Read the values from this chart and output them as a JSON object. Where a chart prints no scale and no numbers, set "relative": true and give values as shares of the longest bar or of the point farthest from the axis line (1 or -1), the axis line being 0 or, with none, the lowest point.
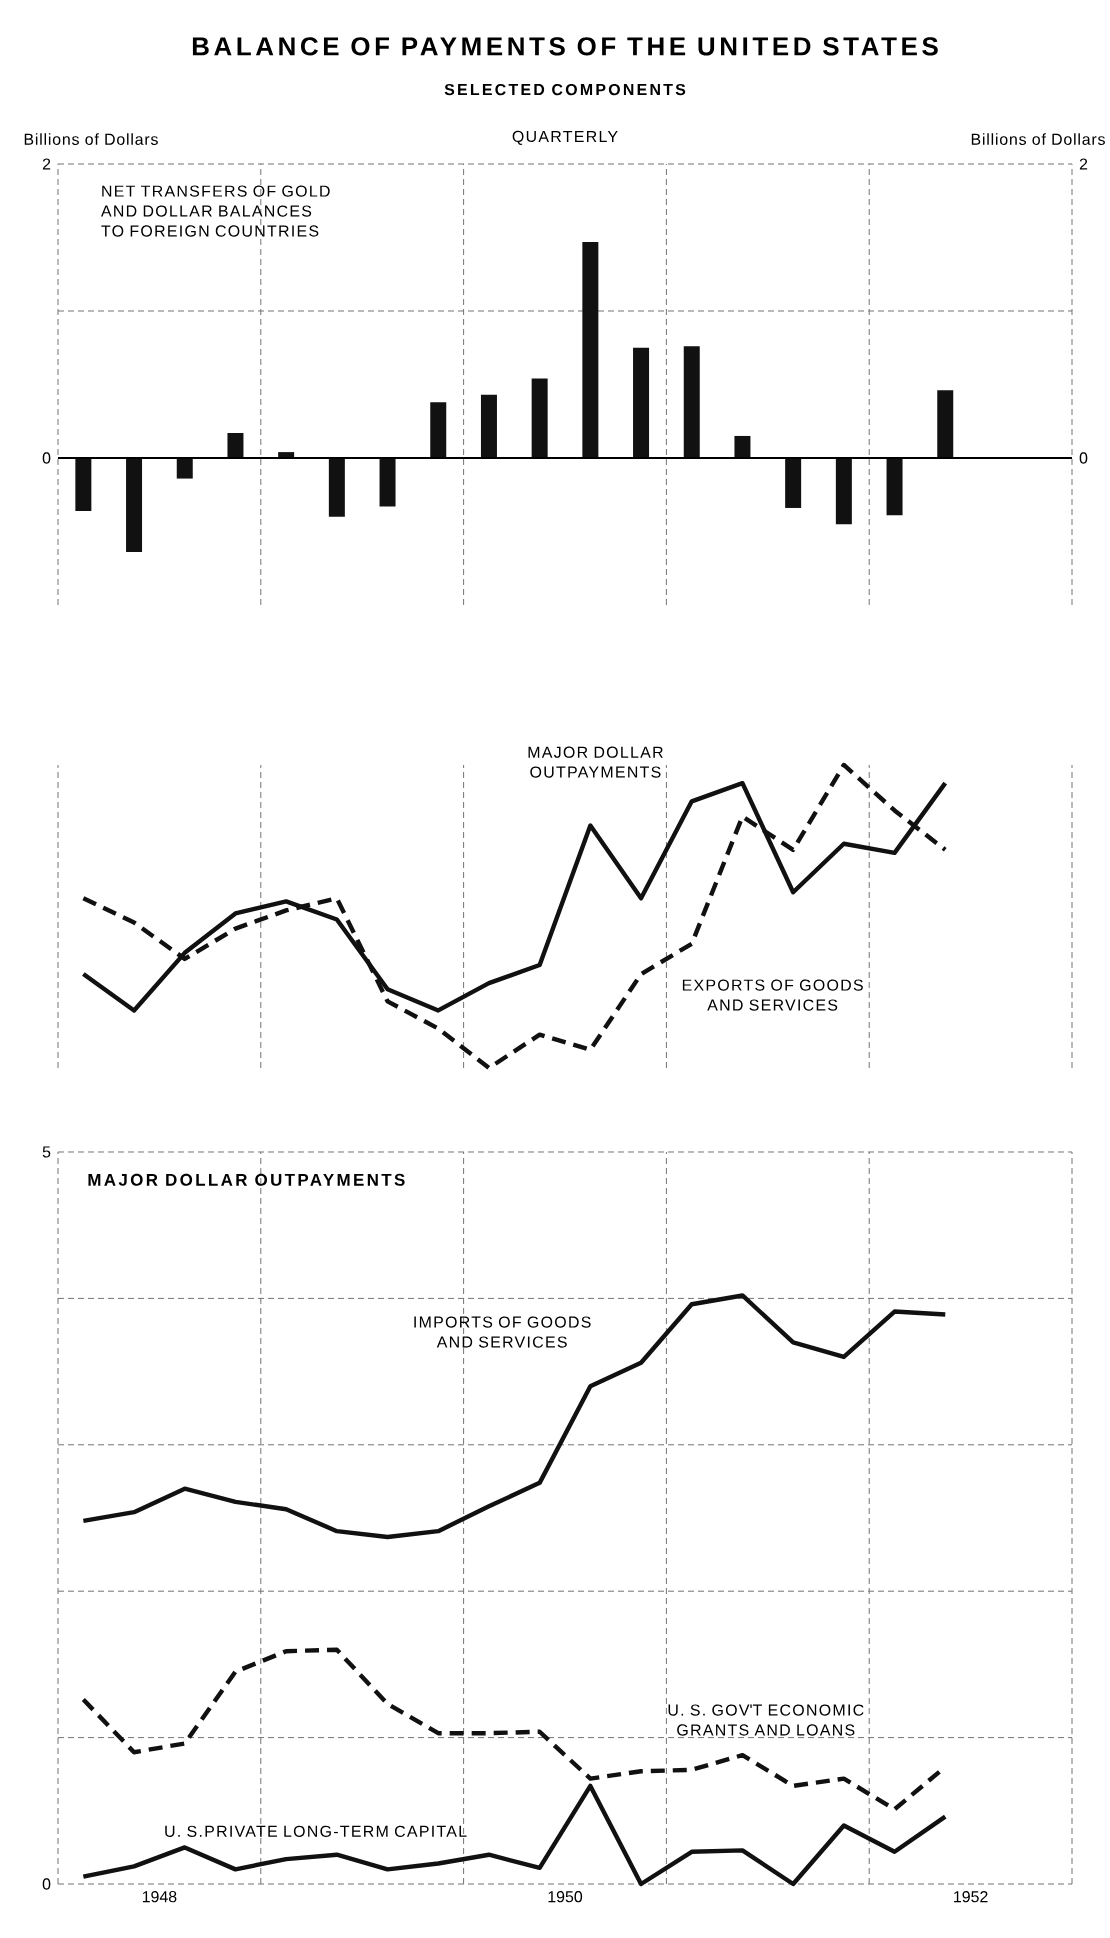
{
  "chart_data": [
    {
      "type": "bar",
      "title": "BALANCE OF PAYMENTS OF THE UNITED STATES",
      "subtitle": "SELECTED COMPONENTS",
      "annotations": [
        "QUARTERLY"
      ],
      "ylabel": "Billions of Dollars",
      "y2label": "Billions of Dollars",
      "x": [
        1948.125,
        1948.375,
        1948.625,
        1948.875,
        1949.125,
        1949.375,
        1949.625,
        1949.875,
        1950.125,
        1950.375,
        1950.625,
        1950.875,
        1951.125,
        1951.375,
        1951.625,
        1951.875,
        1952.125,
        1952.375
      ],
      "xlim": [
        1948,
        1953
      ],
      "xticks": [
        {
          "value": 1948,
          "label": null
        },
        {
          "value": 1949,
          "label": null
        },
        {
          "value": 1950,
          "label": null
        },
        {
          "value": 1951,
          "label": null
        },
        {
          "value": 1952,
          "label": null
        },
        {
          "value": 1953,
          "label": null
        }
      ],
      "ylim": [
        -1,
        2
      ],
      "yticks": [
        0,
        {
          "value": 1,
          "label": null
        },
        2
      ],
      "y2lim": [
        -1,
        2
      ],
      "y2ticks": [
        0,
        2
      ],
      "grid": true,
      "tick_labels": "y",
      "series": [
        {
          "name": "NET TRANSFERS OF GOLD AND DOLLAR BALANCES TO FOREIGN COUNTRIES",
          "color": "#111111",
          "values": [
            -0.36,
            -0.64,
            -0.14,
            0.17,
            0.04,
            -0.4,
            -0.33,
            0.38,
            0.43,
            0.54,
            1.47,
            0.75,
            0.76,
            0.15,
            -0.34,
            -0.45,
            -0.39,
            0.46
          ]
        }
      ]
    },
    {
      "type": "line",
      "relative": true,
      "tick_labels": false,
      "grid": "x",
      "x": [
        1948.125,
        1948.375,
        1948.625,
        1948.875,
        1949.125,
        1949.375,
        1949.625,
        1949.875,
        1950.125,
        1950.375,
        1950.625,
        1950.875,
        1951.125,
        1951.375,
        1951.625,
        1951.875,
        1952.125,
        1952.375
      ],
      "xlim": [
        1948,
        1953
      ],
      "xticks": [
        {
          "value": 1948,
          "label": null
        },
        {
          "value": 1949,
          "label": null
        },
        {
          "value": 1950,
          "label": null
        },
        {
          "value": 1951,
          "label": null
        },
        {
          "value": 1952,
          "label": null
        },
        {
          "value": 1953,
          "label": null
        }
      ],
      "series": [
        {
          "name": "MAJOR DOLLAR OUTPAYMENTS",
          "color": "#111111",
          "line_style": "solid",
          "values": [
            0.31,
            0.19,
            0.38,
            0.51,
            0.55,
            0.49,
            0.26,
            0.19,
            0.28,
            0.34,
            0.8,
            0.56,
            0.88,
            0.94,
            0.58,
            0.74,
            0.71,
            0.94
          ]
        },
        {
          "name": "EXPORTS OF GOODS AND SERVICES",
          "color": "#111111",
          "line_style": "dashed",
          "values": [
            0.56,
            0.48,
            0.36,
            0.46,
            0.52,
            0.56,
            0.22,
            0.13,
            0,
            0.11,
            0.06,
            0.31,
            0.41,
            0.83,
            0.72,
            1,
            0.85,
            0.72
          ]
        }
      ]
    },
    {
      "type": "line",
      "title": "MAJOR DOLLAR OUTPAYMENTS",
      "grid": true,
      "x": [
        1948.125,
        1948.375,
        1948.625,
        1948.875,
        1949.125,
        1949.375,
        1949.625,
        1949.875,
        1950.125,
        1950.375,
        1950.625,
        1950.875,
        1951.125,
        1951.375,
        1951.625,
        1951.875,
        1952.125,
        1952.375
      ],
      "xlim": [
        1948,
        1953
      ],
      "xticks": [
        {
          "value": 1948,
          "label": null
        },
        {
          "value": 1948.5,
          "label": "1948"
        },
        {
          "value": 1949,
          "label": null
        },
        {
          "value": 1950,
          "label": null
        },
        {
          "value": 1950.5,
          "label": "1950"
        },
        {
          "value": 1951,
          "label": null
        },
        {
          "value": 1952,
          "label": null
        },
        {
          "value": 1952.5,
          "label": "1952"
        },
        {
          "value": 1953,
          "label": null
        }
      ],
      "ylim": [
        0,
        5
      ],
      "yticks": [
        0,
        {
          "value": 1,
          "label": null
        },
        {
          "value": 2,
          "label": null
        },
        {
          "value": 3,
          "label": null
        },
        {
          "value": 4,
          "label": null
        },
        5
      ],
      "annotations": [
        "0"
      ],
      "series": [
        {
          "name": "IMPORTS OF GOODS AND SERVICES",
          "color": "#111111",
          "line_style": "solid",
          "values": [
            2.48,
            2.54,
            2.7,
            2.61,
            2.56,
            2.41,
            2.37,
            2.41,
            2.58,
            2.74,
            3.4,
            3.56,
            3.96,
            4.02,
            3.7,
            3.6,
            3.91,
            3.89
          ]
        },
        {
          "name": "U. S. GOV'T ECONOMIC GRANTS AND LOANS",
          "color": "#111111",
          "line_style": "dashed",
          "values": [
            1.26,
            0.9,
            0.96,
            1.45,
            1.59,
            1.6,
            1.23,
            1.03,
            1.03,
            1.04,
            0.72,
            0.77,
            0.78,
            0.88,
            0.67,
            0.72,
            0.51,
            0.8
          ]
        },
        {
          "name": "U. S.PRIVATE LONG-TERM CAPITAL",
          "color": "#111111",
          "line_style": "solid",
          "values": [
            0.05,
            0.12,
            0.25,
            0.1,
            0.17,
            0.2,
            0.1,
            0.14,
            0.2,
            0.11,
            0.67,
            0.0,
            0.22,
            0.23,
            0.0,
            0.4,
            0.22,
            0.46
          ]
        }
      ]
    }
  ]
}
